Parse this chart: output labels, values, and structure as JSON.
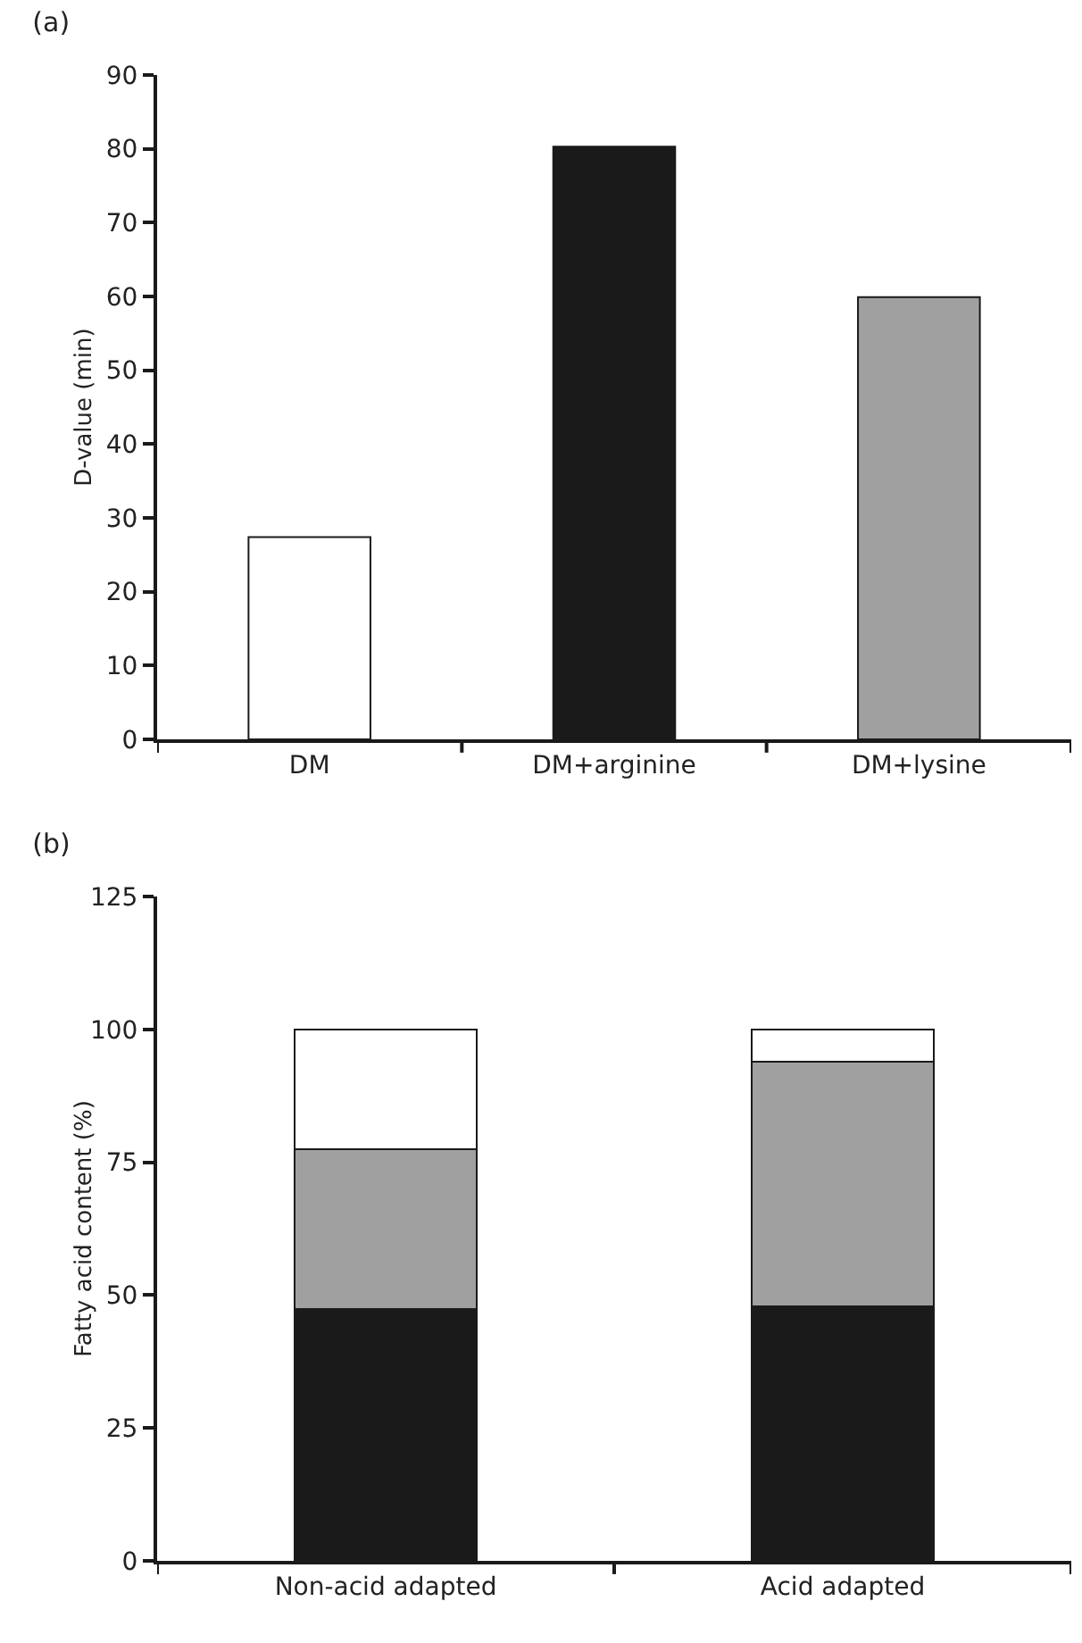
{
  "chart_data": [
    {
      "type": "bar",
      "title": "(a)",
      "ylabel": "D-value (min)",
      "categories": [
        "DM",
        "DM+arginine",
        "DM+lysine"
      ],
      "values": [
        27.4,
        80.3,
        59.9
      ],
      "colors": [
        "#ffffff",
        "#1a1a1a",
        "#a0a0a0"
      ],
      "ylim": [
        0,
        90
      ],
      "yticks": [
        0,
        10,
        20,
        30,
        40,
        50,
        60,
        70,
        80,
        90
      ],
      "grid": false
    },
    {
      "type": "bar",
      "title": "(b)",
      "ylabel": "Fatty acid content (%)",
      "categories": [
        "Non-acid adapted",
        "Acid adapted"
      ],
      "stacked": true,
      "series": [
        {
          "color": "#1a1a1a",
          "values": [
            47.3,
            47.9
          ]
        },
        {
          "color": "#a0a0a0",
          "values": [
            30.1,
            46.0
          ]
        },
        {
          "color": "#ffffff",
          "values": [
            22.6,
            6.1
          ]
        }
      ],
      "ylim": [
        0,
        125
      ],
      "yticks": [
        0,
        25,
        50,
        75,
        100,
        125
      ],
      "grid": false
    }
  ]
}
